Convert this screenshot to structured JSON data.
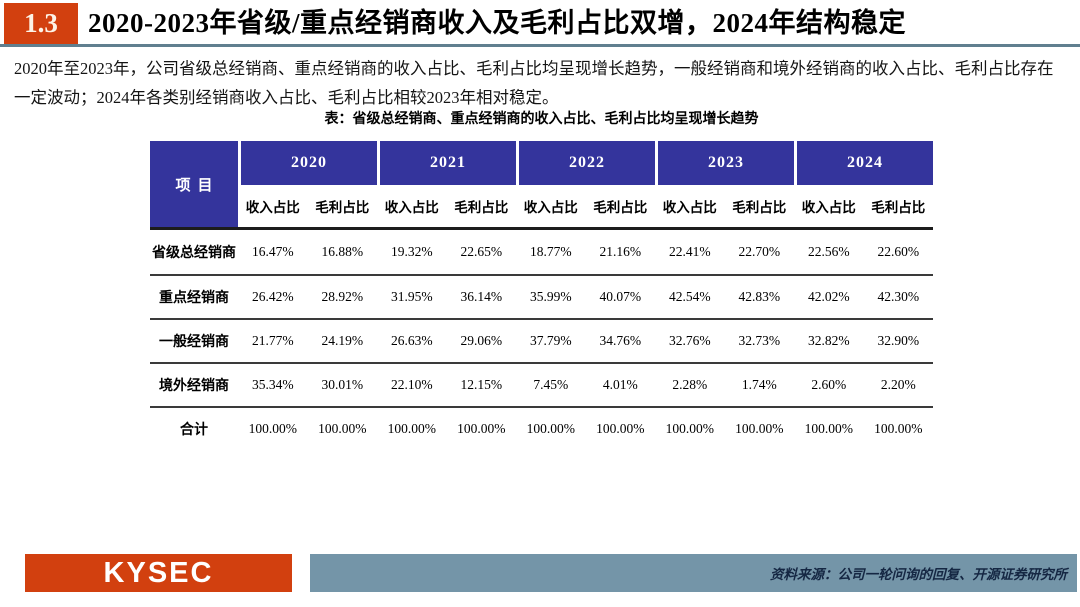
{
  "header": {
    "section_number": "1.3",
    "title": "2020-2023年省级/重点经销商收入及毛利占比双增，2024年结构稳定"
  },
  "body": {
    "paragraph": "2020年至2023年，公司省级总经销商、重点经销商的收入占比、毛利占比均呈现增长趋势，一般经销商和境外经销商的收入占比、毛利占比存在一定波动；2024年各类别经销商收入占比、毛利占比相较2023年相对稳定。"
  },
  "table": {
    "caption": "表：省级总经销商、重点经销商的收入占比、毛利占比均呈现增长趋势",
    "item_header": "项目",
    "years": [
      "2020",
      "2021",
      "2022",
      "2023",
      "2024"
    ],
    "sub_headers": [
      "收入占比",
      "毛利占比"
    ],
    "rows": [
      {
        "label": "省级总经销商",
        "values": [
          "16.47%",
          "16.88%",
          "19.32%",
          "22.65%",
          "18.77%",
          "21.16%",
          "22.41%",
          "22.70%",
          "22.56%",
          "22.60%"
        ]
      },
      {
        "label": "重点经销商",
        "values": [
          "26.42%",
          "28.92%",
          "31.95%",
          "36.14%",
          "35.99%",
          "40.07%",
          "42.54%",
          "42.83%",
          "42.02%",
          "42.30%"
        ]
      },
      {
        "label": "一般经销商",
        "values": [
          "21.77%",
          "24.19%",
          "26.63%",
          "29.06%",
          "37.79%",
          "34.76%",
          "32.76%",
          "32.73%",
          "32.82%",
          "32.90%"
        ]
      },
      {
        "label": "境外经销商",
        "values": [
          "35.34%",
          "30.01%",
          "22.10%",
          "12.15%",
          "7.45%",
          "4.01%",
          "2.28%",
          "1.74%",
          "2.60%",
          "2.20%"
        ]
      },
      {
        "label": "合计",
        "values": [
          "100.00%",
          "100.00%",
          "100.00%",
          "100.00%",
          "100.00%",
          "100.00%",
          "100.00%",
          "100.00%",
          "100.00%",
          "100.00%"
        ]
      }
    ]
  },
  "footer": {
    "logo_text": "KYSEC",
    "source": "资料来源：公司一轮问询的回复、开源证券研究所"
  },
  "colors": {
    "accent_red": "#d2400f",
    "table_header_blue": "#34349c",
    "footer_bar_blue": "#7495a8",
    "title_underline": "#607f8f"
  }
}
